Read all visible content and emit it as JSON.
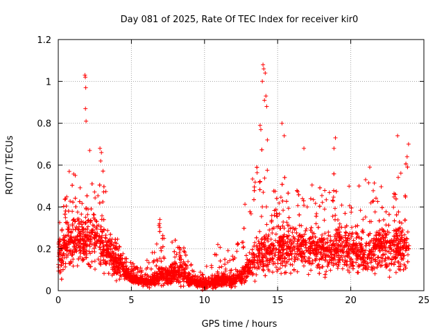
{
  "chart_data": {
    "type": "scatter",
    "title": "Day 081 of 2025, Rate Of TEC Index for receiver kir0",
    "xlabel": "GPS time / hours",
    "ylabel": "ROTI / TECUs",
    "xlim": [
      0,
      25
    ],
    "ylim": [
      0,
      1.2
    ],
    "x_ticks": [
      0,
      5,
      10,
      15,
      20,
      25
    ],
    "x_tick_labels": [
      "0",
      "5",
      "10",
      "15",
      "20",
      "25"
    ],
    "y_ticks": [
      0,
      0.2,
      0.4,
      0.6,
      0.8,
      1.0,
      1.2
    ],
    "y_tick_labels": [
      "0",
      "0.2",
      "0.4",
      "0.6",
      "0.8",
      "1",
      "1.2"
    ],
    "grid": true,
    "marker": "+",
    "series": [
      {
        "name": "ROTI",
        "color": "#ff0000",
        "envelope": {
          "x": [
            0,
            0.5,
            1,
            1.5,
            2,
            2.5,
            3,
            3.5,
            4,
            4.5,
            5,
            5.5,
            6,
            6.5,
            7,
            7.5,
            8,
            8.5,
            9,
            9.5,
            10,
            10.5,
            11,
            11.5,
            12,
            12.5,
            13,
            13.5,
            14,
            14.5,
            15,
            15.5,
            16,
            16.5,
            17,
            17.5,
            18,
            18.5,
            19,
            19.5,
            20,
            20.5,
            21,
            21.5,
            22,
            22.5,
            23,
            23.5,
            24
          ],
          "y_low": [
            0.04,
            0.05,
            0.05,
            0.05,
            0.04,
            0.05,
            0.04,
            0.04,
            0.03,
            0.03,
            0.02,
            0.02,
            0.01,
            0.01,
            0.01,
            0.01,
            0.01,
            0.01,
            0.01,
            0.0,
            0.0,
            0.0,
            0.0,
            0.01,
            0.01,
            0.01,
            0.02,
            0.03,
            0.04,
            0.04,
            0.03,
            0.05,
            0.06,
            0.06,
            0.06,
            0.06,
            0.05,
            0.05,
            0.05,
            0.05,
            0.05,
            0.05,
            0.05,
            0.05,
            0.04,
            0.04,
            0.03,
            0.03,
            0.03
          ],
          "y_typical": [
            0.17,
            0.2,
            0.22,
            0.24,
            0.25,
            0.24,
            0.22,
            0.17,
            0.13,
            0.09,
            0.06,
            0.05,
            0.04,
            0.05,
            0.07,
            0.07,
            0.09,
            0.08,
            0.05,
            0.04,
            0.03,
            0.04,
            0.05,
            0.05,
            0.05,
            0.07,
            0.11,
            0.15,
            0.18,
            0.18,
            0.18,
            0.2,
            0.21,
            0.2,
            0.19,
            0.19,
            0.19,
            0.18,
            0.2,
            0.19,
            0.18,
            0.18,
            0.18,
            0.19,
            0.2,
            0.2,
            0.2,
            0.2,
            0.2
          ],
          "y_high": [
            0.33,
            0.45,
            0.58,
            0.5,
            0.57,
            0.48,
            0.62,
            0.35,
            0.26,
            0.18,
            0.14,
            0.11,
            0.13,
            0.25,
            0.34,
            0.22,
            0.25,
            0.22,
            0.15,
            0.08,
            0.1,
            0.16,
            0.27,
            0.23,
            0.18,
            0.34,
            0.48,
            0.62,
            0.75,
            0.5,
            0.48,
            0.55,
            0.5,
            0.5,
            0.55,
            0.5,
            0.5,
            0.55,
            0.6,
            0.47,
            0.53,
            0.5,
            0.55,
            0.5,
            0.6,
            0.5,
            0.55,
            0.6,
            0.63
          ]
        },
        "outliers": [
          [
            1.82,
            1.03
          ],
          [
            1.85,
            1.02
          ],
          [
            1.88,
            0.97
          ],
          [
            1.86,
            0.87
          ],
          [
            1.9,
            0.81
          ],
          [
            2.15,
            0.67
          ],
          [
            2.85,
            0.68
          ],
          [
            2.95,
            0.66
          ],
          [
            2.9,
            0.62
          ],
          [
            0.75,
            0.57
          ],
          [
            14.0,
            1.08
          ],
          [
            14.05,
            1.06
          ],
          [
            14.15,
            1.04
          ],
          [
            13.95,
            1.0
          ],
          [
            14.2,
            0.93
          ],
          [
            14.1,
            0.91
          ],
          [
            14.25,
            0.88
          ],
          [
            13.8,
            0.79
          ],
          [
            13.85,
            0.77
          ],
          [
            14.3,
            0.72
          ],
          [
            15.3,
            0.8
          ],
          [
            15.45,
            0.74
          ],
          [
            16.8,
            0.68
          ],
          [
            18.95,
            0.73
          ],
          [
            18.85,
            0.68
          ],
          [
            23.2,
            0.74
          ],
          [
            23.95,
            0.7
          ],
          [
            23.85,
            0.64
          ],
          [
            21.3,
            0.59
          ],
          [
            6.95,
            0.34
          ]
        ]
      }
    ]
  }
}
